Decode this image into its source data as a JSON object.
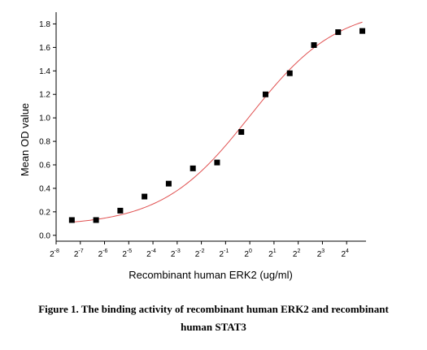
{
  "chart_data": {
    "type": "scatter",
    "xlabel": "Recombinant human  ERK2 (ug/ml)",
    "ylabel": "Mean OD value",
    "x_scale": "log2",
    "x_exponent_range": [
      -8,
      4.8
    ],
    "x_ticks": [
      {
        "base": "2",
        "exp": "-8",
        "value": -8
      },
      {
        "base": "2",
        "exp": "-7",
        "value": -7
      },
      {
        "base": "2",
        "exp": "-6",
        "value": -6
      },
      {
        "base": "2",
        "exp": "-5",
        "value": -5
      },
      {
        "base": "2",
        "exp": "-4",
        "value": -4
      },
      {
        "base": "2",
        "exp": "-3",
        "value": -3
      },
      {
        "base": "2",
        "exp": "-2",
        "value": -2
      },
      {
        "base": "2",
        "exp": "-1",
        "value": -1
      },
      {
        "base": "2",
        "exp": "0",
        "value": 0
      },
      {
        "base": "2",
        "exp": "1",
        "value": 1
      },
      {
        "base": "2",
        "exp": "2",
        "value": 2
      },
      {
        "base": "2",
        "exp": "3",
        "value": 3
      },
      {
        "base": "2",
        "exp": "4",
        "value": 4
      }
    ],
    "ylim": [
      -0.05,
      1.9
    ],
    "y_ticks": [
      "0.0",
      "0.2",
      "0.4",
      "0.6",
      "0.8",
      "1.0",
      "1.2",
      "1.4",
      "1.6",
      "1.8"
    ],
    "series": [
      {
        "marker": "square",
        "color": "#000000",
        "points": [
          {
            "log2_x": -7.35,
            "y": 0.13
          },
          {
            "log2_x": -6.35,
            "y": 0.13
          },
          {
            "log2_x": -5.35,
            "y": 0.21
          },
          {
            "log2_x": -4.35,
            "y": 0.33
          },
          {
            "log2_x": -3.35,
            "y": 0.44
          },
          {
            "log2_x": -2.35,
            "y": 0.57
          },
          {
            "log2_x": -1.35,
            "y": 0.62
          },
          {
            "log2_x": -0.35,
            "y": 0.88
          },
          {
            "log2_x": 0.65,
            "y": 1.2
          },
          {
            "log2_x": 1.65,
            "y": 1.38
          },
          {
            "log2_x": 2.65,
            "y": 1.62
          },
          {
            "log2_x": 3.65,
            "y": 1.73
          },
          {
            "log2_x": 4.65,
            "y": 1.74
          }
        ]
      }
    ],
    "fit_curve": {
      "color": "#e05050",
      "model": "4PL",
      "bottom": 0.08,
      "top": 1.95,
      "center_log2_x": 0.0,
      "slope_log2": 0.55,
      "log2_x_range": [
        -7.35,
        4.65
      ]
    }
  },
  "caption": {
    "line1": "Figure 1. The binding activity of recombinant human ERK2 and recombinant",
    "line2": "human STAT3"
  }
}
